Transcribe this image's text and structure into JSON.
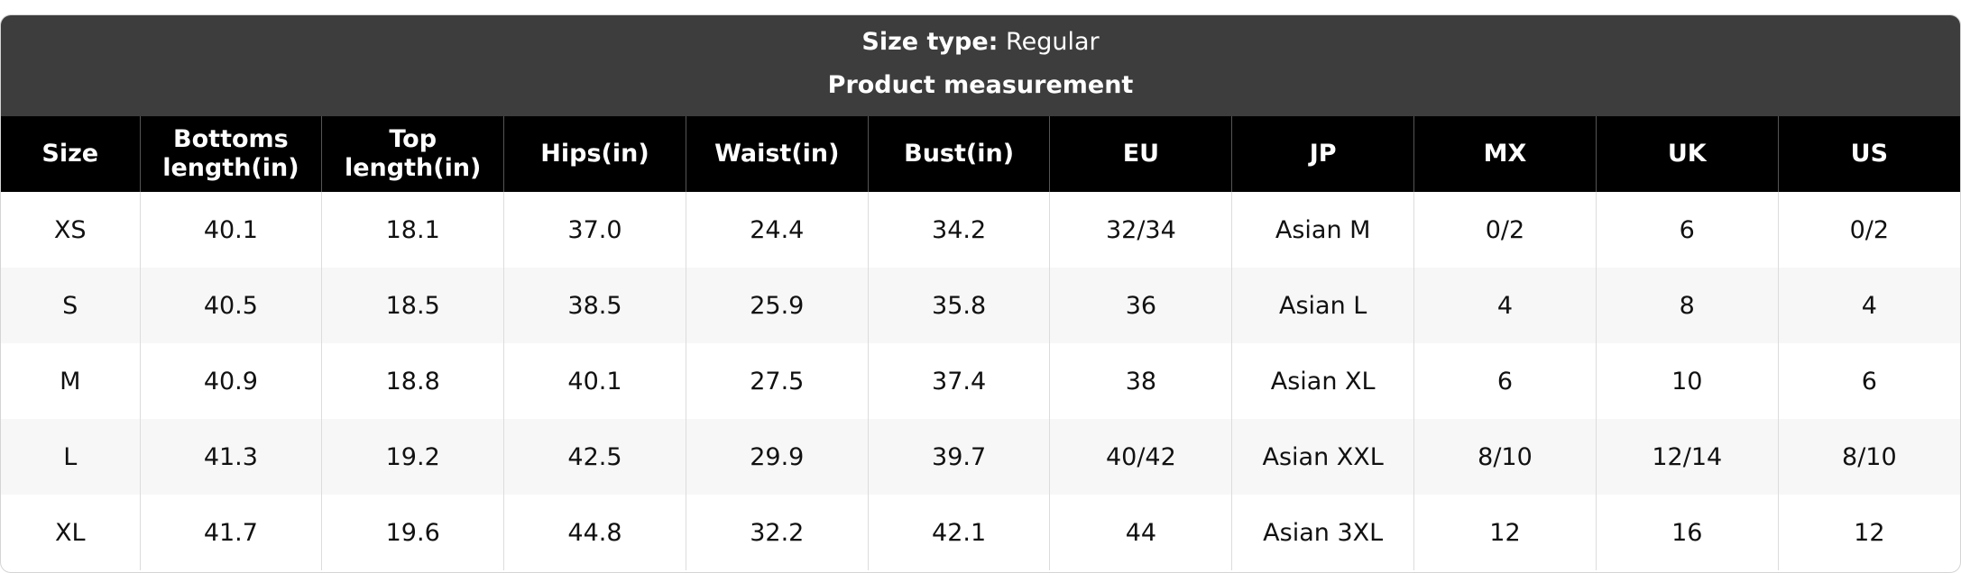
{
  "header": {
    "size_type_label": "Size type:",
    "size_type_value": "Regular",
    "subtitle": "Product measurement"
  },
  "table": {
    "columns": [
      "Size",
      "Bottoms length(in)",
      "Top length(in)",
      "Hips(in)",
      "Waist(in)",
      "Bust(in)",
      "EU",
      "JP",
      "MX",
      "UK",
      "US"
    ],
    "rows": [
      [
        "XS",
        "40.1",
        "18.1",
        "37.0",
        "24.4",
        "34.2",
        "32/34",
        "Asian M",
        "0/2",
        "6",
        "0/2"
      ],
      [
        "S",
        "40.5",
        "18.5",
        "38.5",
        "25.9",
        "35.8",
        "36",
        "Asian L",
        "4",
        "8",
        "4"
      ],
      [
        "M",
        "40.9",
        "18.8",
        "40.1",
        "27.5",
        "37.4",
        "38",
        "Asian XL",
        "6",
        "10",
        "6"
      ],
      [
        "L",
        "41.3",
        "19.2",
        "42.5",
        "29.9",
        "39.7",
        "40/42",
        "Asian XXL",
        "8/10",
        "12/14",
        "8/10"
      ],
      [
        "XL",
        "41.7",
        "19.6",
        "44.8",
        "32.2",
        "42.1",
        "44",
        "Asian 3XL",
        "12",
        "16",
        "12"
      ]
    ]
  }
}
